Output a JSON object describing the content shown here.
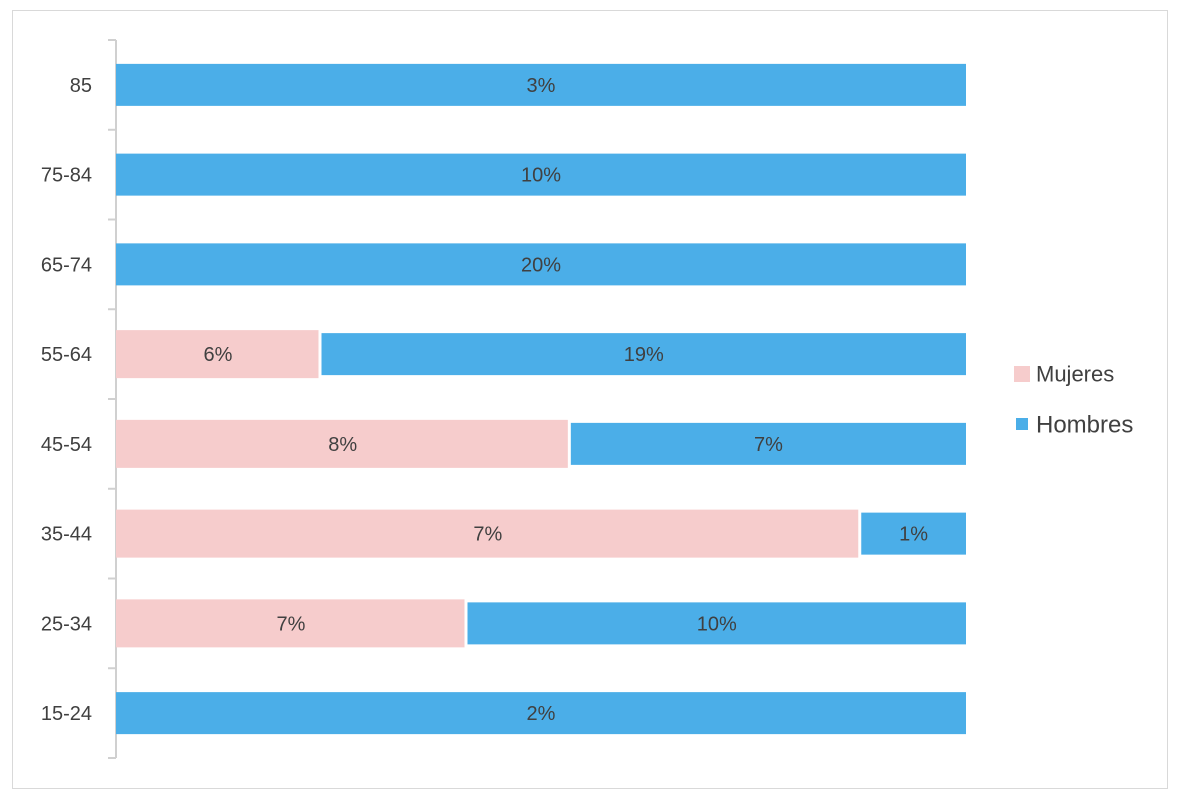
{
  "chart_data": {
    "type": "bar",
    "orientation": "horizontal",
    "stacking": "100%",
    "categories": [
      "85",
      "75-84",
      "65-74",
      "55-64",
      "45-54",
      "35-44",
      "25-34",
      "15-24"
    ],
    "series": [
      {
        "name": "Mujeres",
        "color": "#f6cccc",
        "values": [
          0,
          0,
          0,
          6,
          8,
          7,
          7,
          0
        ],
        "labels": [
          "",
          "",
          "",
          "6%",
          "8%",
          "7%",
          "7%",
          ""
        ]
      },
      {
        "name": "Hombres",
        "color": "#4baee8",
        "values": [
          3,
          10,
          20,
          19,
          7,
          1,
          10,
          2
        ],
        "labels": [
          "3%",
          "10%",
          "20%",
          "19%",
          "7%",
          "1%",
          "10%",
          "2%"
        ]
      }
    ],
    "legend_position": "right",
    "grid": false
  }
}
